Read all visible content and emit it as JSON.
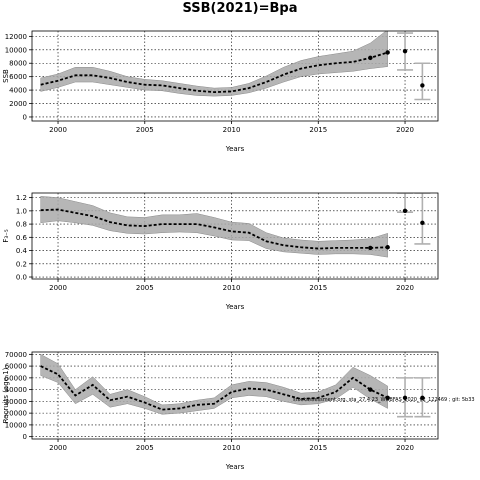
{
  "figure": {
    "title": "SSB(2021)=Bpa",
    "annotation": "stockassessment.org, sta_27.4.23_WGBFAS_2020_v2_122469 ; git: 5b33"
  },
  "chart_data": [
    {
      "type": "line",
      "name": "ssb",
      "xlabel": "Years",
      "ylabel": "SSB",
      "xlim": [
        1998.5,
        2021.9
      ],
      "ylim": [
        -600,
        12800
      ],
      "yticks": [
        0,
        2000,
        4000,
        6000,
        8000,
        10000,
        12000
      ],
      "ytick_labels": [
        "0",
        "2000",
        "4000",
        "6000",
        "8000",
        "10000",
        "12000"
      ],
      "xticks": [
        2000,
        2005,
        2010,
        2015,
        2020
      ],
      "xtick_labels": [
        "2000",
        "2005",
        "2010",
        "2015",
        "2020"
      ],
      "grid": true,
      "years": [
        1999,
        2000,
        2001,
        2002,
        2003,
        2004,
        2005,
        2006,
        2007,
        2008,
        2009,
        2010,
        2011,
        2012,
        2013,
        2014,
        2015,
        2016,
        2017,
        2018,
        2019
      ],
      "estimate": [
        4800,
        5400,
        6200,
        6200,
        5800,
        5200,
        4800,
        4700,
        4300,
        3900,
        3700,
        3800,
        4300,
        5200,
        6300,
        7200,
        7700,
        8000,
        8200,
        8800,
        9600
      ],
      "lower": [
        3800,
        4400,
        5200,
        5200,
        4800,
        4400,
        4000,
        3900,
        3500,
        3200,
        3100,
        3200,
        3600,
        4300,
        5200,
        6000,
        6400,
        6600,
        6800,
        7200,
        7500
      ],
      "upper": [
        5800,
        6400,
        7400,
        7400,
        6800,
        6000,
        5600,
        5400,
        5000,
        4600,
        4300,
        4400,
        5000,
        6100,
        7400,
        8400,
        9000,
        9400,
        9800,
        11000,
        13000
      ],
      "final_point": {
        "x": 2018,
        "y": 8800
      },
      "forecast": [
        {
          "x": 2020,
          "y": 9800,
          "low": 7000,
          "high": 12500
        },
        {
          "x": 2021,
          "y": 4700,
          "low": 2600,
          "high": 8000
        }
      ]
    },
    {
      "type": "line",
      "name": "f",
      "xlabel": "Years",
      "ylabel": "F₃₋₅",
      "xlim": [
        1998.5,
        2021.9
      ],
      "ylim": [
        -0.03,
        1.27
      ],
      "yticks": [
        0.0,
        0.2,
        0.4,
        0.6,
        0.8,
        1.0,
        1.2
      ],
      "ytick_labels": [
        "0.0",
        "0.2",
        "0.4",
        "0.6",
        "0.8",
        "1.0",
        "1.2"
      ],
      "xticks": [
        2000,
        2005,
        2010,
        2015,
        2020
      ],
      "xtick_labels": [
        "2000",
        "2005",
        "2010",
        "2015",
        "2020"
      ],
      "grid": true,
      "years": [
        1999,
        2000,
        2001,
        2002,
        2003,
        2004,
        2005,
        2006,
        2007,
        2008,
        2009,
        2010,
        2011,
        2012,
        2013,
        2014,
        2015,
        2016,
        2017,
        2018,
        2019
      ],
      "estimate": [
        1.01,
        1.02,
        0.97,
        0.92,
        0.83,
        0.78,
        0.77,
        0.8,
        0.8,
        0.8,
        0.75,
        0.69,
        0.67,
        0.54,
        0.48,
        0.45,
        0.43,
        0.44,
        0.44,
        0.44,
        0.45
      ],
      "lower": [
        0.82,
        0.85,
        0.82,
        0.78,
        0.7,
        0.66,
        0.65,
        0.67,
        0.68,
        0.67,
        0.62,
        0.56,
        0.55,
        0.43,
        0.38,
        0.36,
        0.34,
        0.35,
        0.35,
        0.34,
        0.3
      ],
      "upper": [
        1.22,
        1.2,
        1.14,
        1.08,
        0.97,
        0.91,
        0.9,
        0.94,
        0.94,
        0.96,
        0.9,
        0.83,
        0.81,
        0.67,
        0.59,
        0.56,
        0.54,
        0.55,
        0.56,
        0.58,
        0.66
      ],
      "final_point": {
        "x": 2018,
        "y": 0.44
      },
      "forecast": [
        {
          "x": 2020,
          "y": 1.0,
          "low": 0.98,
          "high": 1.27
        },
        {
          "x": 2021,
          "y": 0.82,
          "low": 0.5,
          "high": 1.27
        }
      ]
    },
    {
      "type": "line",
      "name": "recruitment",
      "xlabel": "Years",
      "ylabel": "Recruits (age 1)",
      "xlim": [
        1998.5,
        2021.9
      ],
      "ylim": [
        -2000,
        72000
      ],
      "yticks": [
        0,
        10000,
        20000,
        30000,
        40000,
        50000,
        60000,
        70000
      ],
      "ytick_labels": [
        "0",
        "10000",
        "20000",
        "30000",
        "40000",
        "50000",
        "60000",
        "70000"
      ],
      "xticks": [
        2000,
        2005,
        2010,
        2015,
        2020
      ],
      "xtick_labels": [
        "2000",
        "2005",
        "2010",
        "2015",
        "2020"
      ],
      "grid": true,
      "years": [
        1999,
        2000,
        2001,
        2002,
        2003,
        2004,
        2005,
        2006,
        2007,
        2008,
        2009,
        2010,
        2011,
        2012,
        2013,
        2014,
        2015,
        2016,
        2017,
        2018,
        2019
      ],
      "estimate": [
        60000,
        53000,
        35000,
        44000,
        31000,
        34000,
        29000,
        23000,
        24000,
        27000,
        28000,
        38000,
        41000,
        40000,
        36000,
        32000,
        33000,
        38000,
        50000,
        40000,
        33000
      ],
      "lower": [
        52000,
        46000,
        28000,
        36000,
        25000,
        28000,
        24000,
        19000,
        20000,
        22000,
        24000,
        33000,
        35000,
        34000,
        30000,
        27000,
        28000,
        32000,
        42000,
        32000,
        24000
      ],
      "upper": [
        70000,
        62000,
        40000,
        51000,
        36000,
        40000,
        34000,
        27000,
        28000,
        31000,
        33000,
        44000,
        47000,
        46000,
        42000,
        37000,
        38000,
        44000,
        59000,
        52000,
        43000
      ],
      "final_point": {
        "x": 2018,
        "y": 40000
      },
      "forecast": [
        {
          "x": 2020,
          "y": 33000,
          "low": 17000,
          "high": 50000
        },
        {
          "x": 2021,
          "y": 33000,
          "low": 17000,
          "high": 50000
        }
      ]
    }
  ]
}
